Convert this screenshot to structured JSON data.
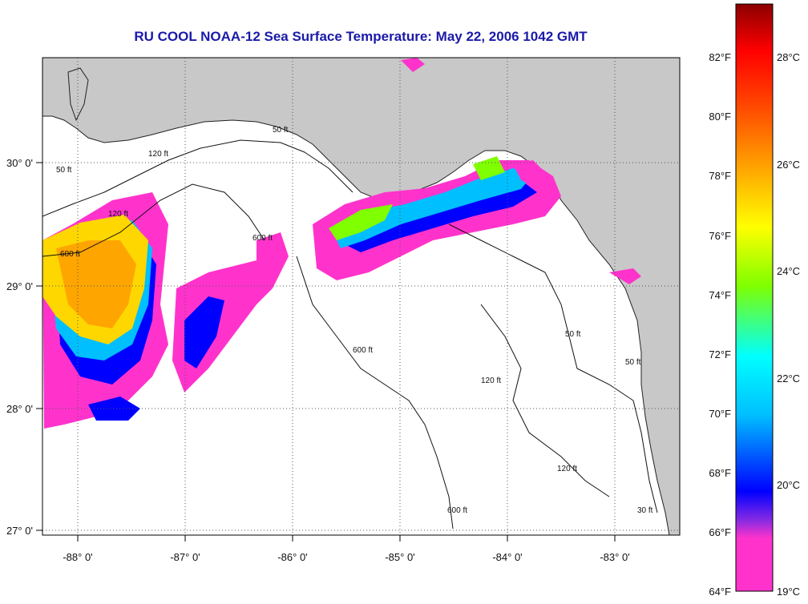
{
  "title": "RU COOL  NOAA-12  Sea Surface Temperature:  May 22, 2006 1042 GMT",
  "map": {
    "lon_range": [
      -88.35,
      -82.35
    ],
    "lat_range": [
      26.95,
      30.85
    ],
    "lon_ticks": [
      "-88° 0'",
      "-87° 0'",
      "-86° 0'",
      "-85° 0'",
      "-84° 0'",
      "-83° 0'"
    ],
    "lat_ticks": [
      "30° 0'",
      "29° 0'",
      "28° 0'",
      "27° 0'"
    ],
    "contour_labels": [
      "50 ft",
      "120 ft",
      "600 ft",
      "600 ft",
      "120 ft",
      "50 ft",
      "600 ft",
      "120 ft",
      "50 ft",
      "120 ft",
      "600 ft",
      "50 ft",
      "30 ft"
    ],
    "colors": {
      "land": "#c8c8c8",
      "water": "#ffffff",
      "grid": "#555555"
    }
  },
  "colorbar": {
    "fahrenheit_labels": [
      "82°F",
      "80°F",
      "78°F",
      "76°F",
      "74°F",
      "72°F",
      "70°F",
      "68°F",
      "66°F",
      "64°F"
    ],
    "celsius_labels": [
      "28°C",
      "26°C",
      "24°C",
      "22°C",
      "20°C",
      "19°C"
    ],
    "stops": [
      "#ff33cc",
      "#ff33cc",
      "#8a2be2",
      "#0000ff",
      "#00bfff",
      "#00ffff",
      "#7fff00",
      "#ffff00",
      "#ffa500",
      "#ff4500",
      "#ff0000",
      "#8b0000"
    ]
  }
}
